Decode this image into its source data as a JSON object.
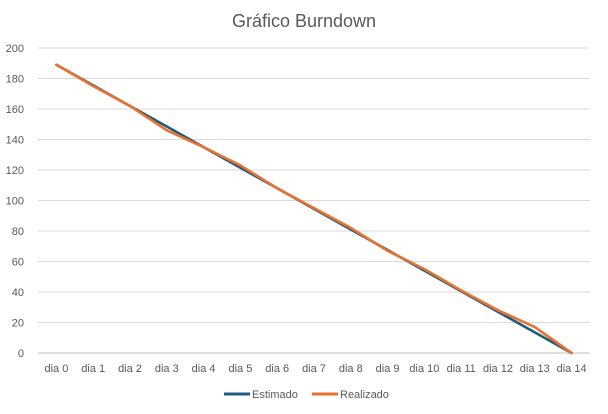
{
  "chart_data": {
    "type": "line",
    "title": "Gráfico Burndown",
    "xlabel": "",
    "ylabel": "",
    "ylim": [
      0,
      200
    ],
    "yticks": [
      0,
      20,
      40,
      60,
      80,
      100,
      120,
      140,
      160,
      180,
      200
    ],
    "grid": true,
    "legend_position": "bottom",
    "categories": [
      "dia 0",
      "dia 1",
      "dia 2",
      "dia 3",
      "dia 4",
      "dia 5",
      "dia 6",
      "dia 7",
      "dia 8",
      "dia 9",
      "dia 10",
      "dia 11",
      "dia 12",
      "dia 13",
      "dia 14"
    ],
    "series": [
      {
        "name": "Estimado",
        "color": "#1F5A7A",
        "values": [
          189,
          175.5,
          162,
          148.5,
          135,
          121.5,
          108,
          94.5,
          81,
          67.5,
          54,
          40.5,
          27,
          13.5,
          0
        ]
      },
      {
        "name": "Realizado",
        "color": "#E97132",
        "values": [
          189,
          175,
          162,
          146,
          135,
          123,
          108,
          95,
          82,
          67,
          55,
          41,
          28,
          17,
          0
        ]
      }
    ]
  }
}
